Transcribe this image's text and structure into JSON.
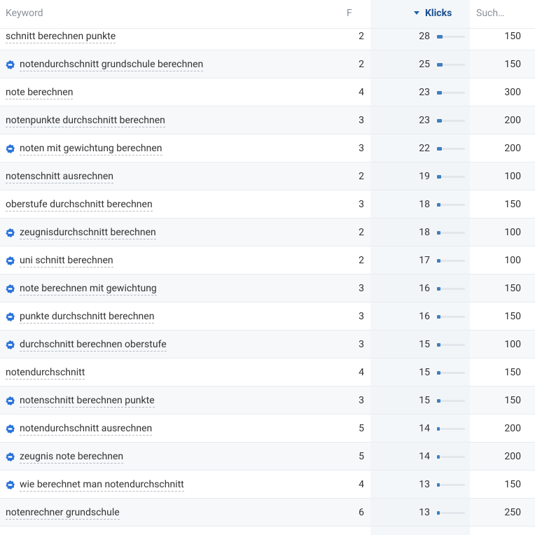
{
  "header": {
    "keyword": "Keyword",
    "f": "F",
    "klicks": "Klicks",
    "such": "Such…"
  },
  "rows": [
    {
      "keyword": "schnitt berechnen punkte",
      "ai": false,
      "f": 2,
      "klicks": 28,
      "such": 150
    },
    {
      "keyword": "notendurchschnitt grundschule berechnen",
      "ai": true,
      "f": 2,
      "klicks": 25,
      "such": 150
    },
    {
      "keyword": "note berechnen",
      "ai": false,
      "f": 4,
      "klicks": 23,
      "such": 300
    },
    {
      "keyword": "notenpunkte durchschnitt berechnen",
      "ai": false,
      "f": 3,
      "klicks": 23,
      "such": 200
    },
    {
      "keyword": "noten mit gewichtung berechnen",
      "ai": true,
      "f": 3,
      "klicks": 22,
      "such": 200
    },
    {
      "keyword": "notenschnitt ausrechnen",
      "ai": false,
      "f": 2,
      "klicks": 19,
      "such": 100
    },
    {
      "keyword": "oberstufe durchschnitt berechnen",
      "ai": false,
      "f": 3,
      "klicks": 18,
      "such": 150
    },
    {
      "keyword": "zeugnisdurchschnitt berechnen",
      "ai": true,
      "f": 2,
      "klicks": 18,
      "such": 100
    },
    {
      "keyword": "uni schnitt berechnen",
      "ai": true,
      "f": 2,
      "klicks": 17,
      "such": 100
    },
    {
      "keyword": "note berechnen mit gewichtung",
      "ai": true,
      "f": 3,
      "klicks": 16,
      "such": 150
    },
    {
      "keyword": "punkte durchschnitt berechnen",
      "ai": true,
      "f": 3,
      "klicks": 16,
      "such": 150
    },
    {
      "keyword": "durchschnitt berechnen oberstufe",
      "ai": true,
      "f": 3,
      "klicks": 15,
      "such": 100
    },
    {
      "keyword": "notendurchschnitt",
      "ai": false,
      "f": 4,
      "klicks": 15,
      "such": 150
    },
    {
      "keyword": "notenschnitt berechnen punkte",
      "ai": true,
      "f": 3,
      "klicks": 15,
      "such": 150
    },
    {
      "keyword": "notendurchschnitt ausrechnen",
      "ai": true,
      "f": 5,
      "klicks": 14,
      "such": 200
    },
    {
      "keyword": "zeugnis note berechnen",
      "ai": true,
      "f": 5,
      "klicks": 14,
      "such": 200
    },
    {
      "keyword": "wie berechnet man notendurchschnitt",
      "ai": true,
      "f": 4,
      "klicks": 13,
      "such": 150
    },
    {
      "keyword": "notenrechner grundschule",
      "ai": false,
      "f": 6,
      "klicks": 13,
      "such": 250
    }
  ]
}
